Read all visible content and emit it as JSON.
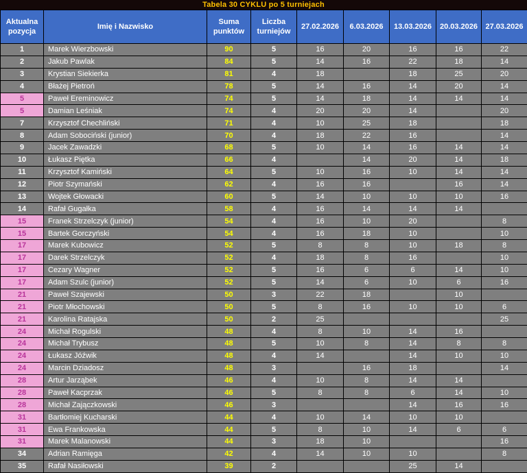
{
  "title": "Tabela 30 CYKLU po 5 turniejach",
  "colors": {
    "title_bg": "#140808",
    "title_text": "#ffc000",
    "header_bg": "#3f6dc6",
    "header_text": "#ffffff",
    "row_bg": "#7f7f7f",
    "row_text": "#ffffff",
    "points_text": "#ffff00",
    "tied_position_bg": "#efa6d7",
    "tied_position_text": "#b8339a",
    "border": "#000000"
  },
  "chart_data": {
    "type": "table",
    "title": "Tabela 30 CYKLU po 5 turniejach",
    "columns": [
      "Aktualna pozycja",
      "Imię i Nazwisko",
      "Suma punktów",
      "Liczba turniejów",
      "27.02.2026",
      "6.03.2026",
      "13.03.2026",
      "20.03.2026",
      "27.03.2026"
    ],
    "rows": [
      {
        "position": "1",
        "tied": false,
        "name": "Marek Wierzbowski",
        "points": "90",
        "tournaments": "5",
        "scores": [
          "16",
          "20",
          "16",
          "16",
          "22"
        ]
      },
      {
        "position": "2",
        "tied": false,
        "name": "Jakub Pawlak",
        "points": "84",
        "tournaments": "5",
        "scores": [
          "14",
          "16",
          "22",
          "18",
          "14"
        ]
      },
      {
        "position": "3",
        "tied": false,
        "name": "Krystian Siekierka",
        "points": "81",
        "tournaments": "4",
        "scores": [
          "18",
          "",
          "18",
          "25",
          "20"
        ]
      },
      {
        "position": "4",
        "tied": false,
        "name": "Błażej Pietroń",
        "points": "78",
        "tournaments": "5",
        "scores": [
          "14",
          "16",
          "14",
          "20",
          "14"
        ]
      },
      {
        "position": "5",
        "tied": true,
        "name": "Paweł Ereminowicz",
        "points": "74",
        "tournaments": "5",
        "scores": [
          "14",
          "18",
          "14",
          "14",
          "14"
        ]
      },
      {
        "position": "5",
        "tied": true,
        "name": "Damian Leśniak",
        "points": "74",
        "tournaments": "4",
        "scores": [
          "20",
          "20",
          "14",
          "",
          "20"
        ]
      },
      {
        "position": "7",
        "tied": false,
        "name": "Krzysztof Chechliński",
        "points": "71",
        "tournaments": "4",
        "scores": [
          "10",
          "25",
          "18",
          "",
          "18"
        ]
      },
      {
        "position": "8",
        "tied": false,
        "name": "Adam Sobociński (junior)",
        "points": "70",
        "tournaments": "4",
        "scores": [
          "18",
          "22",
          "16",
          "",
          "14"
        ]
      },
      {
        "position": "9",
        "tied": false,
        "name": "Jacek Zawadzki",
        "points": "68",
        "tournaments": "5",
        "scores": [
          "10",
          "14",
          "16",
          "14",
          "14"
        ]
      },
      {
        "position": "10",
        "tied": false,
        "name": "Łukasz Piętka",
        "points": "66",
        "tournaments": "4",
        "scores": [
          "",
          "14",
          "20",
          "14",
          "18"
        ]
      },
      {
        "position": "11",
        "tied": false,
        "name": "Krzysztof Kamiński",
        "points": "64",
        "tournaments": "5",
        "scores": [
          "10",
          "16",
          "10",
          "14",
          "14"
        ]
      },
      {
        "position": "12",
        "tied": false,
        "name": "Piotr Szymański",
        "points": "62",
        "tournaments": "4",
        "scores": [
          "16",
          "16",
          "",
          "16",
          "14"
        ]
      },
      {
        "position": "13",
        "tied": false,
        "name": "Wojtek Głowacki",
        "points": "60",
        "tournaments": "5",
        "scores": [
          "14",
          "10",
          "10",
          "10",
          "16"
        ]
      },
      {
        "position": "14",
        "tied": false,
        "name": "Rafał Gugałka",
        "points": "58",
        "tournaments": "4",
        "scores": [
          "16",
          "14",
          "14",
          "14",
          ""
        ]
      },
      {
        "position": "15",
        "tied": true,
        "name": "Franek Strzelczyk (junior)",
        "points": "54",
        "tournaments": "4",
        "scores": [
          "16",
          "10",
          "20",
          "",
          "8"
        ]
      },
      {
        "position": "15",
        "tied": true,
        "name": "Bartek Gorczyński",
        "points": "54",
        "tournaments": "4",
        "scores": [
          "16",
          "18",
          "10",
          "",
          "10"
        ]
      },
      {
        "position": "17",
        "tied": true,
        "name": "Marek Kubowicz",
        "points": "52",
        "tournaments": "5",
        "scores": [
          "8",
          "8",
          "10",
          "18",
          "8"
        ]
      },
      {
        "position": "17",
        "tied": true,
        "name": "Darek Strzelczyk",
        "points": "52",
        "tournaments": "4",
        "scores": [
          "18",
          "8",
          "16",
          "",
          "10"
        ]
      },
      {
        "position": "17",
        "tied": true,
        "name": "Cezary Wagner",
        "points": "52",
        "tournaments": "5",
        "scores": [
          "16",
          "6",
          "6",
          "14",
          "10"
        ]
      },
      {
        "position": "17",
        "tied": true,
        "name": "Adam Szulc (junior)",
        "points": "52",
        "tournaments": "5",
        "scores": [
          "14",
          "6",
          "10",
          "6",
          "16"
        ]
      },
      {
        "position": "21",
        "tied": true,
        "name": "Paweł Szajewski",
        "points": "50",
        "tournaments": "3",
        "scores": [
          "22",
          "18",
          "",
          "10",
          ""
        ]
      },
      {
        "position": "21",
        "tied": true,
        "name": "Piotr Młochowski",
        "points": "50",
        "tournaments": "5",
        "scores": [
          "8",
          "16",
          "10",
          "10",
          "6"
        ]
      },
      {
        "position": "21",
        "tied": true,
        "name": "Karolina Ratajska",
        "points": "50",
        "tournaments": "2",
        "scores": [
          "25",
          "",
          "",
          "",
          "25"
        ]
      },
      {
        "position": "24",
        "tied": true,
        "name": "Michał Rogulski",
        "points": "48",
        "tournaments": "4",
        "scores": [
          "8",
          "10",
          "14",
          "16",
          ""
        ]
      },
      {
        "position": "24",
        "tied": true,
        "name": "Michał Trybusz",
        "points": "48",
        "tournaments": "5",
        "scores": [
          "10",
          "8",
          "14",
          "8",
          "8"
        ]
      },
      {
        "position": "24",
        "tied": true,
        "name": "Łukasz Jóźwik",
        "points": "48",
        "tournaments": "4",
        "scores": [
          "14",
          "",
          "14",
          "10",
          "10"
        ]
      },
      {
        "position": "24",
        "tied": true,
        "name": "Marcin Dziadosz",
        "points": "48",
        "tournaments": "3",
        "scores": [
          "",
          "16",
          "18",
          "",
          "14"
        ]
      },
      {
        "position": "28",
        "tied": true,
        "name": "Artur Jarząbek",
        "points": "46",
        "tournaments": "4",
        "scores": [
          "10",
          "8",
          "14",
          "14",
          ""
        ]
      },
      {
        "position": "28",
        "tied": true,
        "name": "Paweł Kacprzak",
        "points": "46",
        "tournaments": "5",
        "scores": [
          "8",
          "8",
          "6",
          "14",
          "10"
        ]
      },
      {
        "position": "28",
        "tied": true,
        "name": "Michał Zajączkowski",
        "points": "46",
        "tournaments": "3",
        "scores": [
          "",
          "",
          "14",
          "16",
          "16"
        ]
      },
      {
        "position": "31",
        "tied": true,
        "name": "Bartłomiej Kucharski",
        "points": "44",
        "tournaments": "4",
        "scores": [
          "10",
          "14",
          "10",
          "10",
          ""
        ]
      },
      {
        "position": "31",
        "tied": true,
        "name": "Ewa Frankowska",
        "points": "44",
        "tournaments": "5",
        "scores": [
          "8",
          "10",
          "14",
          "6",
          "6"
        ]
      },
      {
        "position": "31",
        "tied": true,
        "name": "Marek Malanowski",
        "points": "44",
        "tournaments": "3",
        "scores": [
          "18",
          "10",
          "",
          "",
          "16"
        ]
      },
      {
        "position": "34",
        "tied": false,
        "name": "Adrian Ramięga",
        "points": "42",
        "tournaments": "4",
        "scores": [
          "14",
          "10",
          "10",
          "",
          "8"
        ]
      },
      {
        "position": "35",
        "tied": false,
        "name": "Rafał Nasiłowski",
        "points": "39",
        "tournaments": "2",
        "scores": [
          "",
          "",
          "25",
          "14",
          ""
        ]
      }
    ]
  }
}
